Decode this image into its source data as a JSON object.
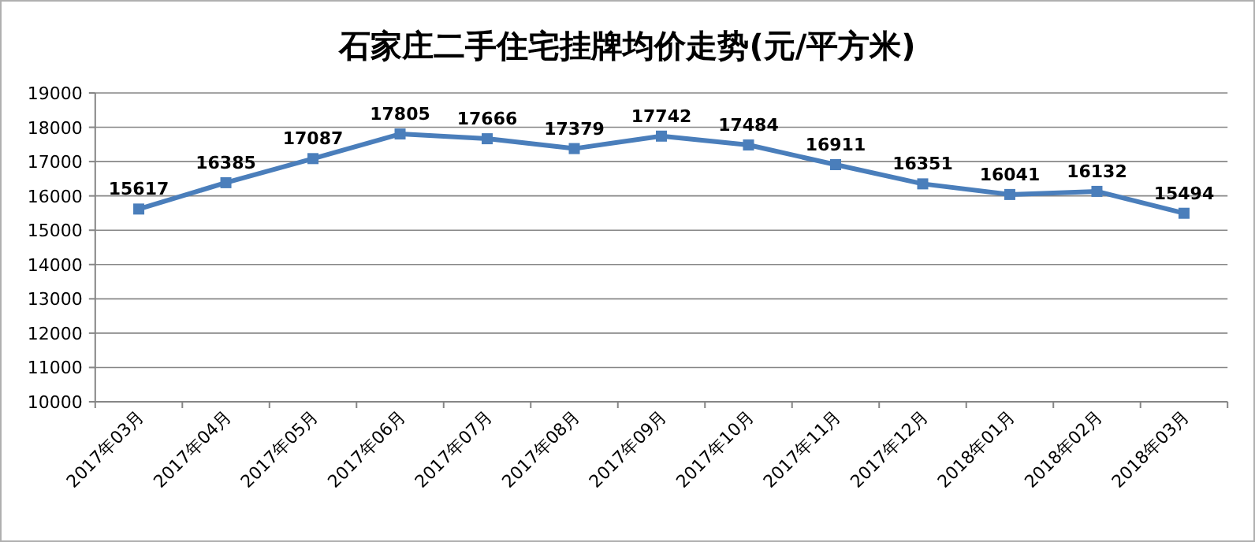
{
  "chart_data": {
    "type": "line",
    "title": "石家庄二手住宅挂牌均价走势(元/平方米)",
    "categories": [
      "2017年03月",
      "2017年04月",
      "2017年05月",
      "2017年06月",
      "2017年07月",
      "2017年08月",
      "2017年09月",
      "2017年10月",
      "2017年11月",
      "2017年12月",
      "2018年01月",
      "2018年02月",
      "2018年03月"
    ],
    "series": [
      {
        "color": "#4a7ebb",
        "values": [
          15617,
          16385,
          17087,
          17805,
          17666,
          17379,
          17742,
          17484,
          16911,
          16351,
          16041,
          16132,
          15494
        ]
      }
    ],
    "ylim": [
      10000,
      19000
    ],
    "yticks": [
      10000,
      11000,
      12000,
      13000,
      14000,
      15000,
      16000,
      17000,
      18000,
      19000
    ],
    "grid": "y",
    "marker": "square",
    "line_style": "solid",
    "data_labels": true
  }
}
